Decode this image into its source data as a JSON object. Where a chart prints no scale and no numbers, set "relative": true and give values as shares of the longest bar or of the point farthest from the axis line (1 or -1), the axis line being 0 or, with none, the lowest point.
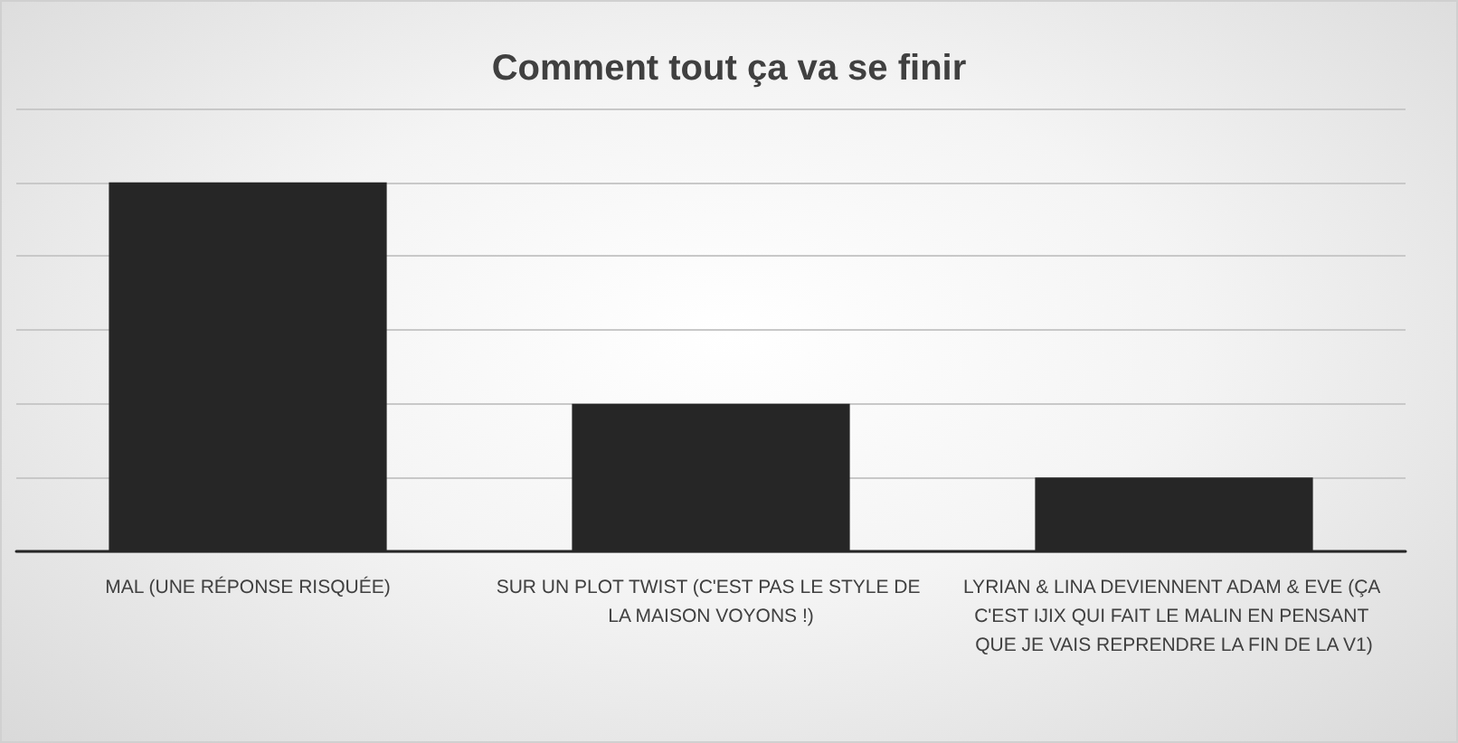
{
  "chart_data": {
    "type": "bar",
    "title": "Comment tout ça va se finir",
    "categories": [
      "MAL (UNE RÉPONSE RISQUÉE)",
      "SUR UN PLOT TWIST (C'EST PAS LE STYLE DE LA MAISON VOYONS !)",
      "LYRIAN & LINA DEVIENNENT ADAM & EVE (ÇA C'EST IJIX QUI FAIT LE MALIN EN PENSANT QUE JE VAIS REPRENDRE LA FIN DE LA V1)"
    ],
    "values": [
      1,
      0.4,
      0.2
    ],
    "color": "#262626",
    "relative": true,
    "grid": "y"
  }
}
